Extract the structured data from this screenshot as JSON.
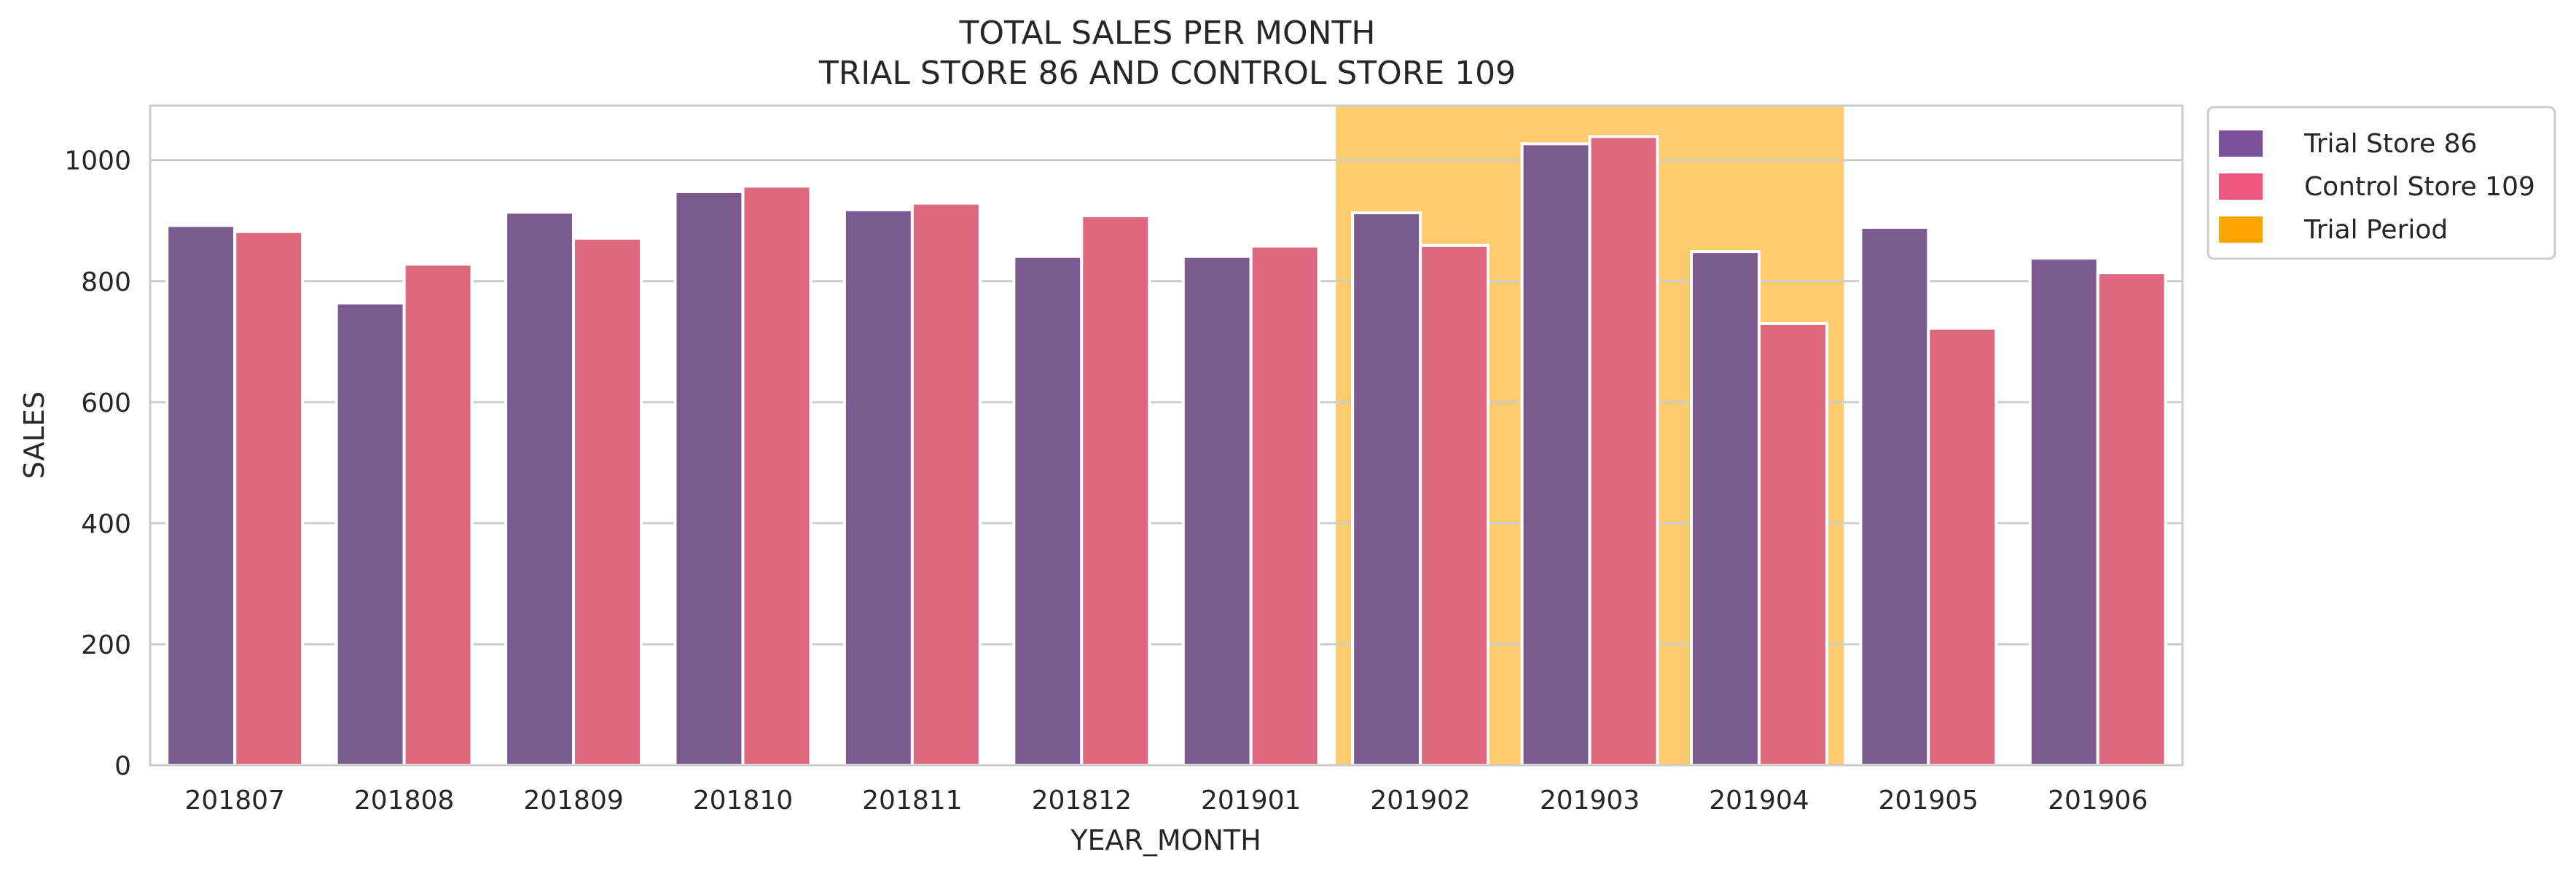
{
  "chart_data": {
    "type": "bar",
    "title_lines": [
      "TOTAL SALES PER MONTH",
      "TRIAL STORE 86 AND CONTROL STORE 109"
    ],
    "xlabel": "YEAR_MONTH",
    "ylabel": "SALES",
    "ylim": [
      0,
      1090
    ],
    "yticks": [
      0,
      200,
      400,
      600,
      800,
      1000
    ],
    "grid": "horizontal",
    "legend_position": "outside-top-right",
    "categories": [
      "201807",
      "201808",
      "201809",
      "201810",
      "201811",
      "201812",
      "201901",
      "201902",
      "201903",
      "201904",
      "201905",
      "201906"
    ],
    "series": [
      {
        "name": "Trial Store 86",
        "color": "#7b5a8f",
        "legend_color": "#7b519d",
        "values": [
          892,
          764,
          914,
          948,
          918,
          841,
          841,
          913,
          1027,
          849,
          889,
          838
        ]
      },
      {
        "name": "Control Store 109",
        "color": "#de687e",
        "legend_color": "#f0577c",
        "values": [
          882,
          828,
          871,
          957,
          929,
          908,
          858,
          859,
          1039,
          730,
          722,
          814
        ]
      }
    ],
    "highlight": {
      "name": "Trial Period",
      "color": "#ffaf1e",
      "opacity": 0.65,
      "legend_color": "#ffa500",
      "start_category": "201902",
      "end_category": "201904"
    }
  }
}
